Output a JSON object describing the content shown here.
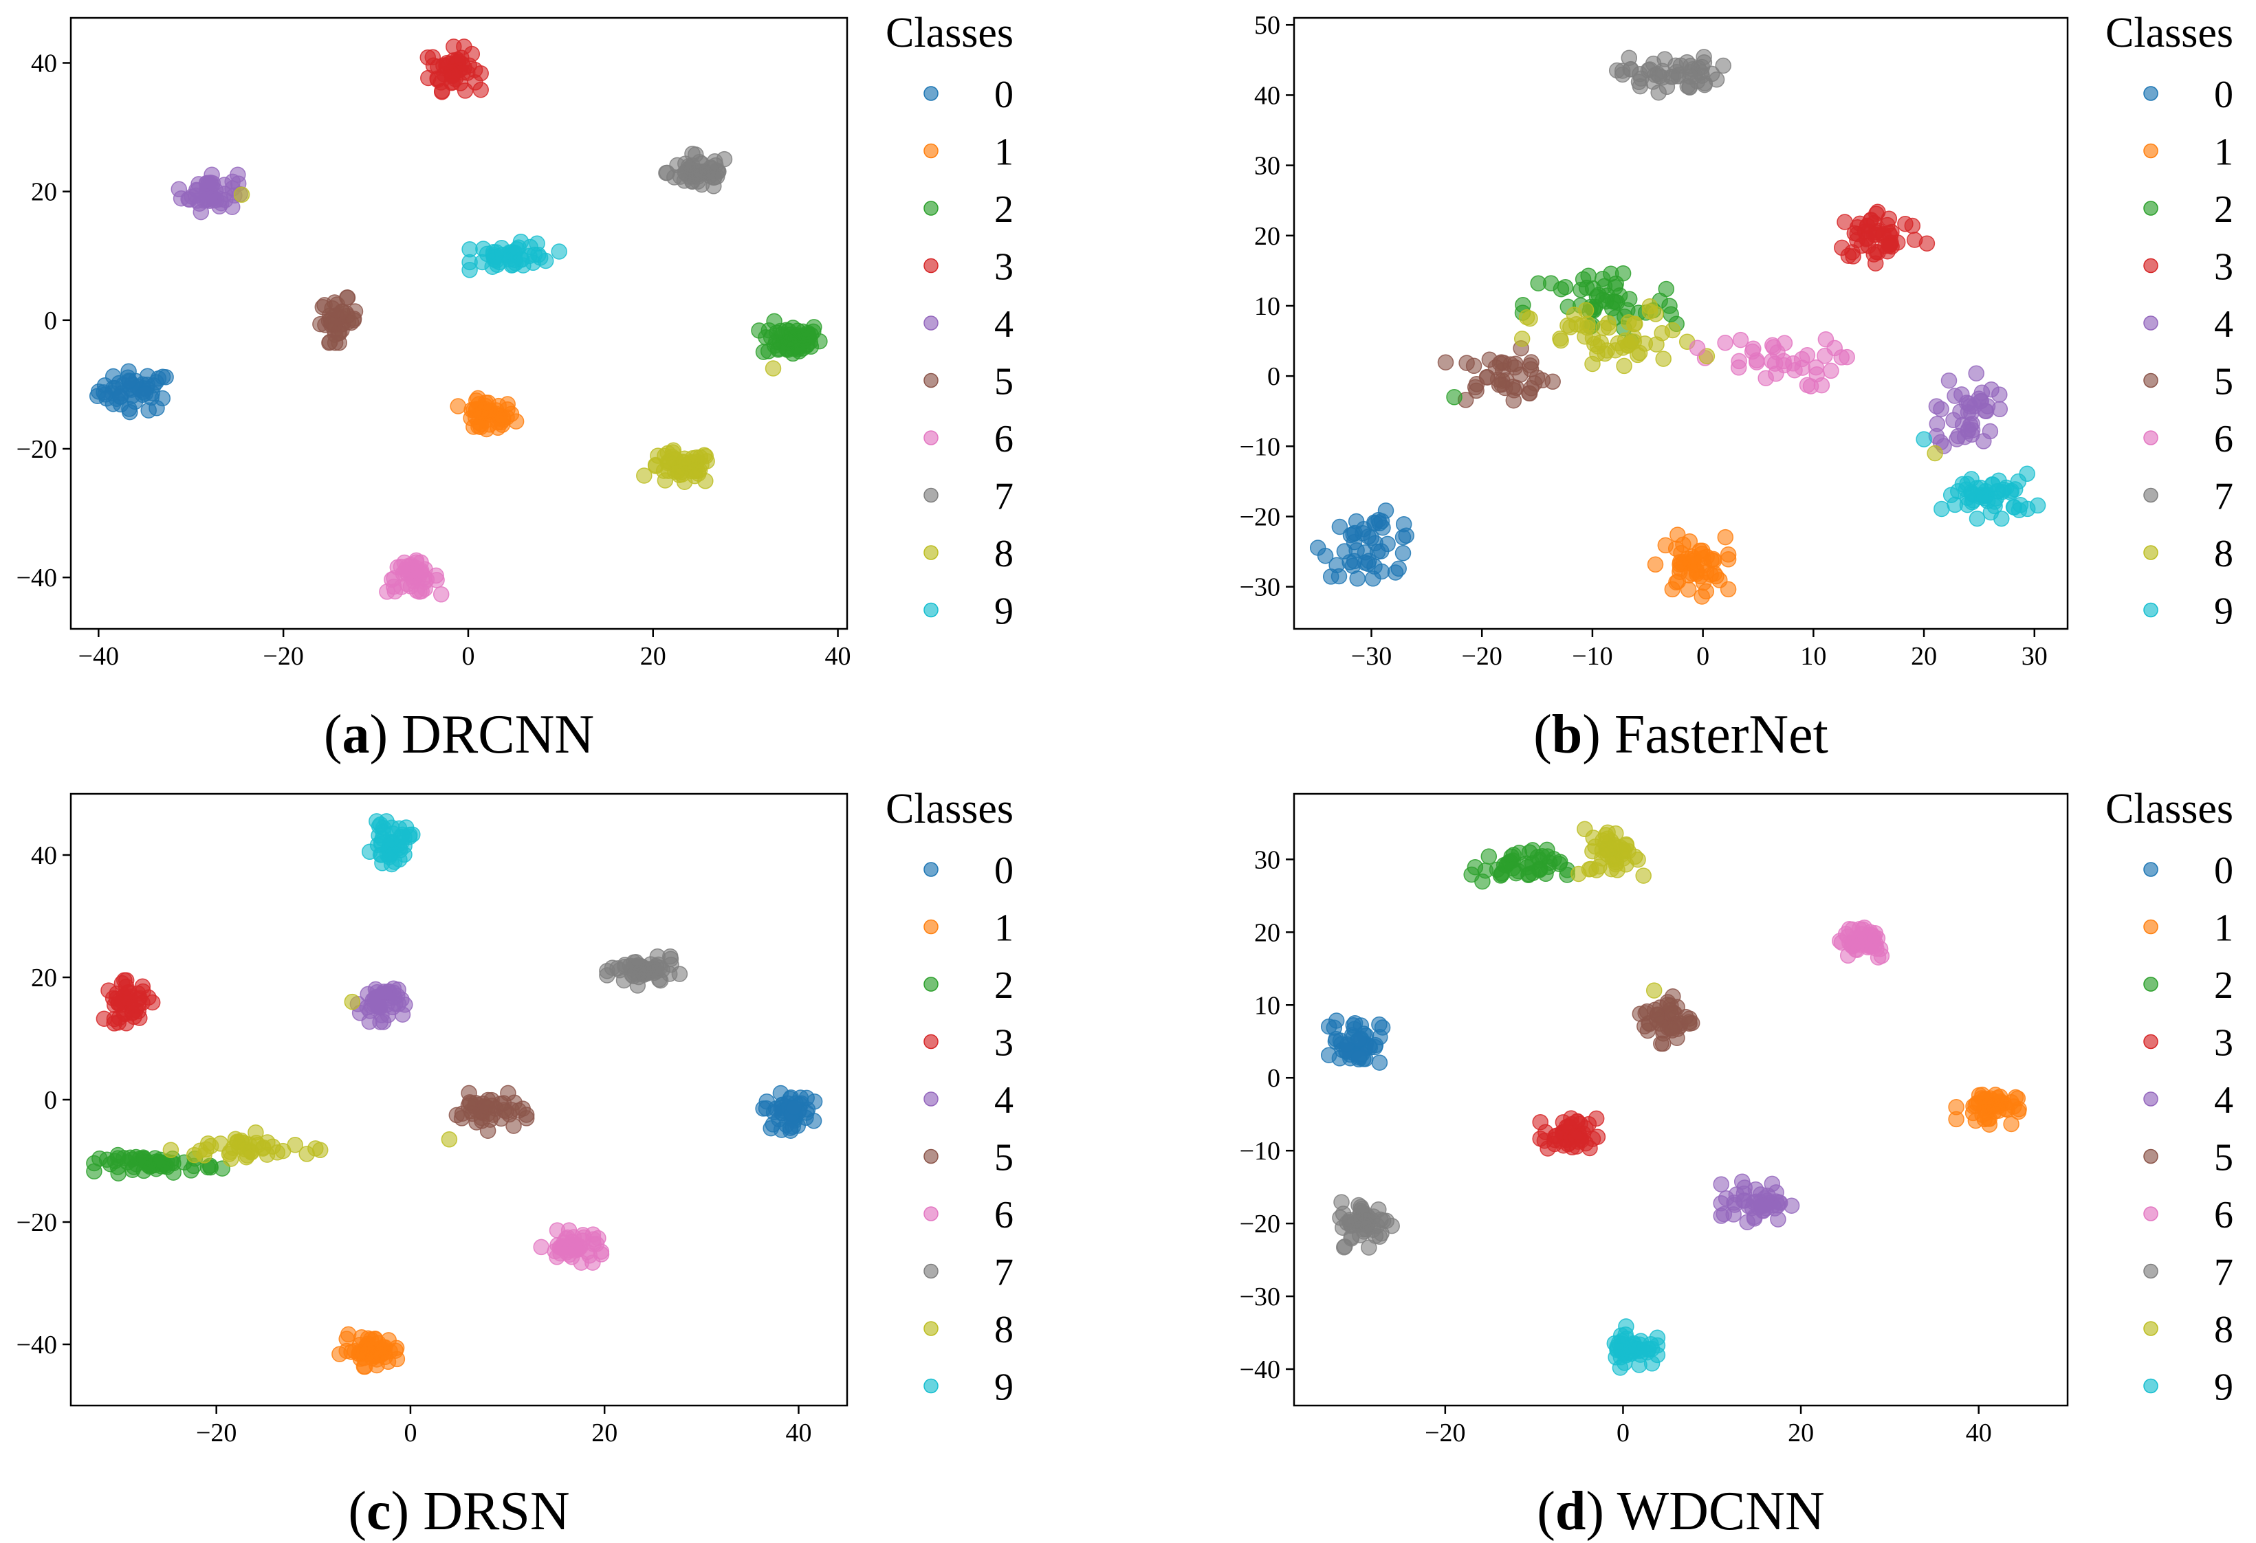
{
  "figure": {
    "type": "t-SNE feature visualization panels"
  },
  "legend_title": "Classes",
  "classes": [
    "0",
    "1",
    "2",
    "3",
    "4",
    "5",
    "6",
    "7",
    "8",
    "9"
  ],
  "class_colors": [
    "#1f77b4",
    "#ff7f0e",
    "#2ca02c",
    "#d62728",
    "#9467bd",
    "#8c564b",
    "#e377c2",
    "#7f7f7f",
    "#bcbd22",
    "#17becf"
  ],
  "chart_data": [
    {
      "id": "a",
      "type": "scatter",
      "caption_letter": "a",
      "caption_name": "DRCNN",
      "xlim": [
        -43,
        41
      ],
      "ylim": [
        -48,
        47
      ],
      "xticks": [
        -40,
        -20,
        0,
        20,
        40
      ],
      "yticks": [
        -40,
        -20,
        0,
        20,
        40
      ],
      "clusters": [
        {
          "cls": 0,
          "x": -36,
          "y": -11,
          "sx": 2.0,
          "sy": 1.5,
          "n": 50
        },
        {
          "cls": 1,
          "x": 2,
          "y": -15,
          "sx": 1.5,
          "sy": 1.3,
          "n": 45
        },
        {
          "cls": 2,
          "x": 35,
          "y": -3,
          "sx": 1.6,
          "sy": 1.3,
          "n": 60
        },
        {
          "cls": 3,
          "x": -1.5,
          "y": 39,
          "sx": 1.3,
          "sy": 1.6,
          "n": 50
        },
        {
          "cls": 4,
          "x": -28,
          "y": 20,
          "sx": 1.5,
          "sy": 1.5,
          "n": 45
        },
        {
          "cls": 5,
          "x": -14,
          "y": 0,
          "sx": 1.0,
          "sy": 1.6,
          "n": 40
        },
        {
          "cls": 6,
          "x": -6,
          "y": -40,
          "sx": 1.4,
          "sy": 1.2,
          "n": 45
        },
        {
          "cls": 7,
          "x": 25,
          "y": 23,
          "sx": 1.7,
          "sy": 1.3,
          "n": 50
        },
        {
          "cls": 8,
          "x": 23,
          "y": -23,
          "sx": 1.8,
          "sy": 1.3,
          "n": 50
        },
        {
          "cls": 9,
          "x": 5,
          "y": 10,
          "sx": 2.2,
          "sy": 1.0,
          "n": 45
        }
      ],
      "points": [
        {
          "cls": 8,
          "x": -24.5,
          "y": 19.5
        },
        {
          "cls": 8,
          "x": 33,
          "y": -7.5
        }
      ]
    },
    {
      "id": "b",
      "type": "scatter",
      "caption_letter": "b",
      "caption_name": "FasterNet",
      "xlim": [
        -37,
        33
      ],
      "ylim": [
        -36,
        51
      ],
      "xticks": [
        -30,
        -20,
        -10,
        0,
        10,
        20,
        30
      ],
      "yticks": [
        -30,
        -20,
        -10,
        0,
        10,
        20,
        30,
        40,
        50
      ],
      "clusters": [
        {
          "cls": 0,
          "x": -30,
          "y": -24,
          "sx": 2.2,
          "sy": 2.2,
          "n": 45
        },
        {
          "cls": 1,
          "x": -1,
          "y": -27,
          "sx": 1.5,
          "sy": 2.0,
          "n": 50
        },
        {
          "cls": 2,
          "x": -9,
          "y": 10,
          "sx": 3.5,
          "sy": 2.8,
          "n": 50
        },
        {
          "cls": 3,
          "x": 16,
          "y": 20,
          "sx": 2.0,
          "sy": 1.8,
          "n": 50
        },
        {
          "cls": 4,
          "x": 24,
          "y": -5,
          "sx": 1.3,
          "sy": 3.0,
          "n": 40
        },
        {
          "cls": 5,
          "x": -18,
          "y": 0,
          "sx": 2.4,
          "sy": 1.8,
          "n": 40
        },
        {
          "cls": 6,
          "x": 6,
          "y": 2,
          "sx": 3.2,
          "sy": 1.8,
          "n": 35
        },
        {
          "cls": 7,
          "x": -3,
          "y": 43,
          "sx": 2.2,
          "sy": 1.2,
          "n": 50
        },
        {
          "cls": 8,
          "x": -8,
          "y": 5,
          "sx": 3.8,
          "sy": 2.3,
          "n": 50
        },
        {
          "cls": 9,
          "x": 26,
          "y": -17,
          "sx": 2.0,
          "sy": 1.5,
          "n": 50
        }
      ],
      "points": [
        {
          "cls": 2,
          "x": -22.5,
          "y": -3
        },
        {
          "cls": 8,
          "x": 21,
          "y": -11
        },
        {
          "cls": 9,
          "x": 20,
          "y": -9
        },
        {
          "cls": 6,
          "x": -0.5,
          "y": 4
        }
      ]
    },
    {
      "id": "c",
      "type": "scatter",
      "caption_letter": "c",
      "caption_name": "DRSN",
      "xlim": [
        -35,
        45
      ],
      "ylim": [
        -50,
        50
      ],
      "xticks": [
        -20,
        0,
        20,
        40
      ],
      "yticks": [
        -40,
        -20,
        0,
        20,
        40
      ],
      "clusters": [
        {
          "cls": 0,
          "x": 39,
          "y": -2,
          "sx": 1.2,
          "sy": 1.4,
          "n": 50
        },
        {
          "cls": 1,
          "x": -4,
          "y": -41,
          "sx": 1.5,
          "sy": 1.2,
          "n": 50
        },
        {
          "cls": 2,
          "x": -26,
          "y": -10.5,
          "sx": 3.0,
          "sy": 0.7,
          "n": 55
        },
        {
          "cls": 3,
          "x": -29,
          "y": 16,
          "sx": 1.2,
          "sy": 1.6,
          "n": 45
        },
        {
          "cls": 4,
          "x": -3,
          "y": 16,
          "sx": 1.1,
          "sy": 1.5,
          "n": 45
        },
        {
          "cls": 5,
          "x": 8,
          "y": -2,
          "sx": 1.8,
          "sy": 1.4,
          "n": 45
        },
        {
          "cls": 6,
          "x": 17,
          "y": -24,
          "sx": 1.6,
          "sy": 1.2,
          "n": 45
        },
        {
          "cls": 7,
          "x": 24,
          "y": 21,
          "sx": 1.7,
          "sy": 1.1,
          "n": 50
        },
        {
          "cls": 8,
          "x": -17,
          "y": -8,
          "sx": 3.5,
          "sy": 1.2,
          "n": 40
        },
        {
          "cls": 9,
          "x": -2,
          "y": 42,
          "sx": 1.0,
          "sy": 1.6,
          "n": 45
        }
      ],
      "points": [
        {
          "cls": 8,
          "x": -6,
          "y": 16
        },
        {
          "cls": 8,
          "x": 4,
          "y": -6.5
        }
      ]
    },
    {
      "id": "d",
      "type": "scatter",
      "caption_letter": "d",
      "caption_name": "WDCNN",
      "xlim": [
        -37,
        50
      ],
      "ylim": [
        -45,
        39
      ],
      "xticks": [
        -20,
        0,
        20,
        40
      ],
      "yticks": [
        -40,
        -30,
        -20,
        -10,
        0,
        10,
        20,
        30
      ],
      "clusters": [
        {
          "cls": 0,
          "x": -30,
          "y": 5,
          "sx": 1.4,
          "sy": 1.6,
          "n": 50
        },
        {
          "cls": 1,
          "x": 41,
          "y": -4,
          "sx": 1.6,
          "sy": 1.1,
          "n": 50
        },
        {
          "cls": 2,
          "x": -12,
          "y": 29,
          "sx": 2.6,
          "sy": 1.1,
          "n": 45
        },
        {
          "cls": 3,
          "x": -6,
          "y": -8,
          "sx": 1.5,
          "sy": 1.2,
          "n": 45
        },
        {
          "cls": 4,
          "x": 15,
          "y": -17,
          "sx": 1.8,
          "sy": 1.3,
          "n": 45
        },
        {
          "cls": 5,
          "x": 5,
          "y": 8,
          "sx": 1.4,
          "sy": 1.5,
          "n": 45
        },
        {
          "cls": 6,
          "x": 27,
          "y": 19,
          "sx": 1.5,
          "sy": 1.3,
          "n": 45
        },
        {
          "cls": 7,
          "x": -29,
          "y": -20,
          "sx": 1.4,
          "sy": 1.5,
          "n": 50
        },
        {
          "cls": 8,
          "x": -1,
          "y": 31,
          "sx": 1.5,
          "sy": 1.5,
          "n": 45
        },
        {
          "cls": 9,
          "x": 1,
          "y": -37,
          "sx": 1.3,
          "sy": 1.3,
          "n": 45
        }
      ],
      "points": [
        {
          "cls": 8,
          "x": 3.5,
          "y": 12
        },
        {
          "cls": 8,
          "x": -5,
          "y": 28
        }
      ]
    }
  ]
}
